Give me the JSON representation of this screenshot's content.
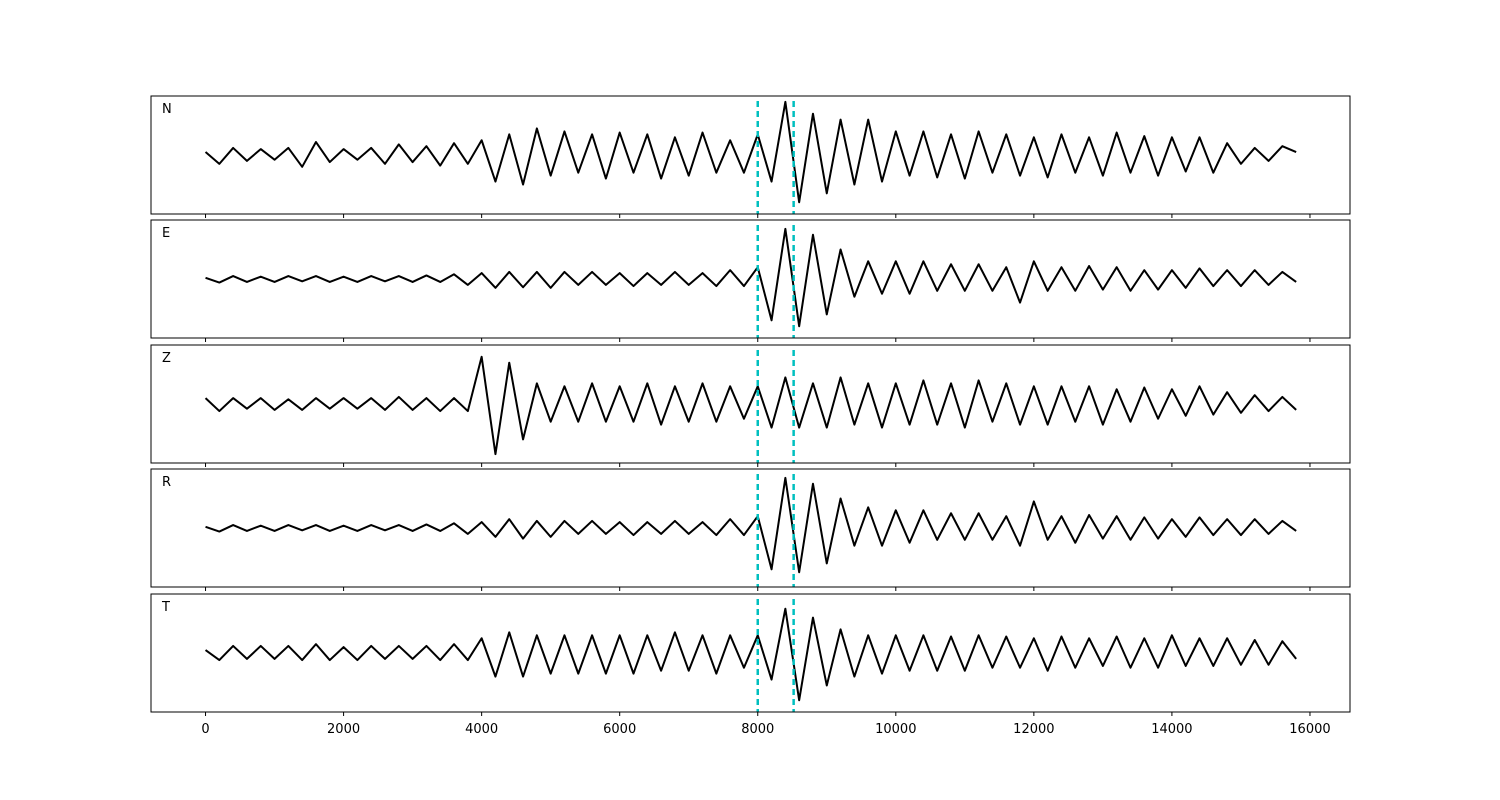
{
  "chart_data": {
    "type": "line",
    "x": [
      0,
      200,
      400,
      600,
      800,
      1000,
      1200,
      1400,
      1600,
      1800,
      2000,
      2200,
      2400,
      2600,
      2800,
      3000,
      3200,
      3400,
      3600,
      3800,
      4000,
      4200,
      4400,
      4600,
      4800,
      5000,
      5200,
      5400,
      5600,
      5800,
      6000,
      6200,
      6400,
      6600,
      6800,
      7000,
      7200,
      7400,
      7600,
      7800,
      8000,
      8200,
      8400,
      8600,
      8800,
      9000,
      9200,
      9400,
      9600,
      9800,
      10000,
      10200,
      10400,
      10600,
      10800,
      11000,
      11200,
      11400,
      11600,
      11800,
      12000,
      12200,
      12400,
      12600,
      12800,
      13000,
      13200,
      13400,
      13600,
      13800,
      14000,
      14200,
      14400,
      14600,
      14800,
      15000,
      15200,
      15400,
      15600,
      15800
    ],
    "series": [
      {
        "name": "N",
        "color": "#000000",
        "values": [
          0.05,
          -0.15,
          0.12,
          -0.1,
          0.1,
          -0.08,
          0.12,
          -0.2,
          0.22,
          -0.12,
          0.1,
          -0.08,
          0.12,
          -0.15,
          0.18,
          -0.12,
          0.15,
          -0.18,
          0.2,
          -0.15,
          0.25,
          -0.45,
          0.35,
          -0.5,
          0.45,
          -0.35,
          0.4,
          -0.3,
          0.35,
          -0.4,
          0.38,
          -0.3,
          0.35,
          -0.4,
          0.3,
          -0.35,
          0.38,
          -0.3,
          0.25,
          -0.3,
          0.35,
          -0.45,
          0.9,
          -0.8,
          0.7,
          -0.65,
          0.6,
          -0.5,
          0.6,
          -0.45,
          0.4,
          -0.35,
          0.4,
          -0.38,
          0.35,
          -0.4,
          0.4,
          -0.3,
          0.35,
          -0.35,
          0.3,
          -0.38,
          0.35,
          -0.3,
          0.3,
          -0.35,
          0.38,
          -0.3,
          0.32,
          -0.35,
          0.3,
          -0.28,
          0.3,
          -0.3,
          0.2,
          -0.15,
          0.12,
          -0.1,
          0.15,
          0.05
        ]
      },
      {
        "name": "E",
        "color": "#000000",
        "values": [
          0.02,
          -0.06,
          0.05,
          -0.05,
          0.04,
          -0.05,
          0.05,
          -0.04,
          0.05,
          -0.05,
          0.04,
          -0.05,
          0.05,
          -0.04,
          0.05,
          -0.05,
          0.06,
          -0.05,
          0.08,
          -0.1,
          0.1,
          -0.15,
          0.12,
          -0.14,
          0.12,
          -0.15,
          0.12,
          -0.1,
          0.12,
          -0.1,
          0.1,
          -0.12,
          0.1,
          -0.1,
          0.12,
          -0.1,
          0.1,
          -0.12,
          0.15,
          -0.12,
          0.2,
          -0.7,
          0.85,
          -0.8,
          0.75,
          -0.6,
          0.5,
          -0.3,
          0.3,
          -0.25,
          0.3,
          -0.25,
          0.3,
          -0.2,
          0.25,
          -0.2,
          0.25,
          -0.2,
          0.2,
          -0.4,
          0.3,
          -0.2,
          0.2,
          -0.2,
          0.22,
          -0.18,
          0.2,
          -0.2,
          0.15,
          -0.18,
          0.15,
          -0.15,
          0.18,
          -0.12,
          0.15,
          -0.12,
          0.15,
          -0.1,
          0.12,
          -0.05
        ]
      },
      {
        "name": "Z",
        "color": "#000000",
        "values": [
          0.1,
          -0.12,
          0.1,
          -0.08,
          0.1,
          -0.1,
          0.08,
          -0.1,
          0.1,
          -0.08,
          0.1,
          -0.08,
          0.1,
          -0.1,
          0.12,
          -0.1,
          0.1,
          -0.12,
          0.1,
          -0.12,
          0.8,
          -0.85,
          0.7,
          -0.6,
          0.35,
          -0.3,
          0.3,
          -0.3,
          0.35,
          -0.3,
          0.3,
          -0.3,
          0.35,
          -0.35,
          0.3,
          -0.3,
          0.35,
          -0.3,
          0.3,
          -0.25,
          0.3,
          -0.4,
          0.45,
          -0.4,
          0.35,
          -0.4,
          0.45,
          -0.35,
          0.35,
          -0.4,
          0.35,
          -0.35,
          0.4,
          -0.35,
          0.35,
          -0.4,
          0.4,
          -0.3,
          0.35,
          -0.35,
          0.3,
          -0.35,
          0.3,
          -0.3,
          0.3,
          -0.35,
          0.25,
          -0.3,
          0.28,
          -0.25,
          0.25,
          -0.2,
          0.3,
          -0.18,
          0.2,
          -0.15,
          0.15,
          -0.12,
          0.12,
          -0.1
        ]
      },
      {
        "name": "R",
        "color": "#000000",
        "values": [
          0.02,
          -0.06,
          0.05,
          -0.05,
          0.04,
          -0.05,
          0.05,
          -0.04,
          0.05,
          -0.05,
          0.04,
          -0.05,
          0.05,
          -0.04,
          0.05,
          -0.05,
          0.06,
          -0.05,
          0.08,
          -0.1,
          0.1,
          -0.15,
          0.15,
          -0.18,
          0.12,
          -0.15,
          0.12,
          -0.1,
          0.12,
          -0.1,
          0.1,
          -0.12,
          0.1,
          -0.1,
          0.12,
          -0.1,
          0.1,
          -0.12,
          0.15,
          -0.12,
          0.2,
          -0.7,
          0.85,
          -0.75,
          0.75,
          -0.6,
          0.5,
          -0.3,
          0.35,
          -0.3,
          0.3,
          -0.25,
          0.3,
          -0.2,
          0.25,
          -0.2,
          0.25,
          -0.2,
          0.2,
          -0.3,
          0.45,
          -0.2,
          0.2,
          -0.25,
          0.22,
          -0.18,
          0.2,
          -0.2,
          0.18,
          -0.18,
          0.15,
          -0.15,
          0.18,
          -0.12,
          0.15,
          -0.12,
          0.15,
          -0.1,
          0.12,
          -0.05
        ]
      },
      {
        "name": "T",
        "color": "#000000",
        "values": [
          0.05,
          -0.12,
          0.12,
          -0.1,
          0.12,
          -0.1,
          0.12,
          -0.12,
          0.15,
          -0.12,
          0.1,
          -0.12,
          0.12,
          -0.1,
          0.12,
          -0.1,
          0.12,
          -0.12,
          0.15,
          -0.12,
          0.25,
          -0.4,
          0.35,
          -0.4,
          0.3,
          -0.35,
          0.3,
          -0.35,
          0.3,
          -0.35,
          0.3,
          -0.35,
          0.3,
          -0.3,
          0.35,
          -0.3,
          0.3,
          -0.35,
          0.3,
          -0.25,
          0.3,
          -0.45,
          0.75,
          -0.8,
          0.6,
          -0.55,
          0.4,
          -0.4,
          0.3,
          -0.35,
          0.3,
          -0.3,
          0.3,
          -0.3,
          0.28,
          -0.3,
          0.3,
          -0.25,
          0.28,
          -0.25,
          0.25,
          -0.3,
          0.28,
          -0.25,
          0.25,
          -0.22,
          0.28,
          -0.25,
          0.25,
          -0.25,
          0.3,
          -0.22,
          0.25,
          -0.22,
          0.25,
          -0.2,
          0.22,
          -0.2,
          0.2,
          -0.1
        ]
      }
    ],
    "xlim": [
      -790,
      16580
    ],
    "ylim": [
      -1,
      1
    ],
    "xticks": [
      0,
      2000,
      4000,
      6000,
      8000,
      10000,
      12000,
      14000,
      16000
    ],
    "markers": {
      "x": [
        8000,
        8520
      ],
      "color": "#00bfbf"
    }
  }
}
